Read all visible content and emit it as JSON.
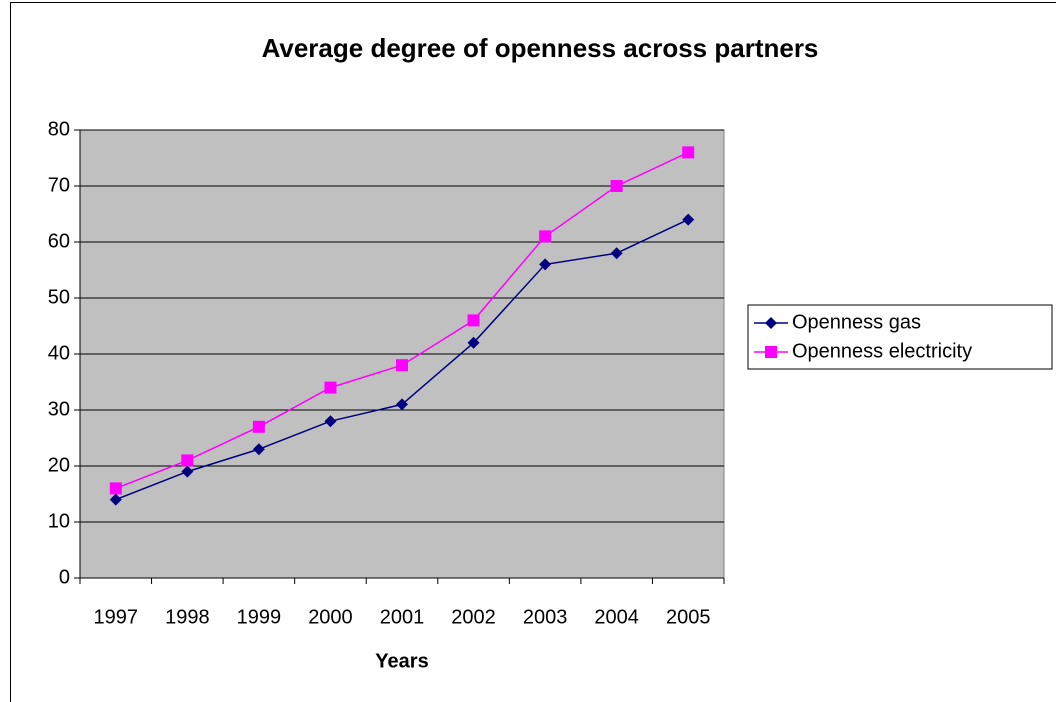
{
  "chart_data": {
    "type": "line",
    "title": "Average degree of openness across partners",
    "x_label": "Years",
    "categories": [
      "1997",
      "1998",
      "1999",
      "2000",
      "2001",
      "2002",
      "2003",
      "2004",
      "2005"
    ],
    "series": [
      {
        "name": "Openness gas",
        "color": "#000080",
        "marker": "diamond",
        "values": [
          14,
          19,
          23,
          28,
          31,
          42,
          56,
          58,
          64
        ]
      },
      {
        "name": "Openness electricity",
        "color": "#ff00ff",
        "marker": "square",
        "values": [
          16,
          21,
          27,
          34,
          38,
          46,
          61,
          70,
          76
        ]
      }
    ],
    "ylim": [
      0,
      80
    ],
    "yticks": [
      0,
      10,
      20,
      30,
      40,
      50,
      60,
      70,
      80
    ],
    "grid": true,
    "legend": "right"
  }
}
